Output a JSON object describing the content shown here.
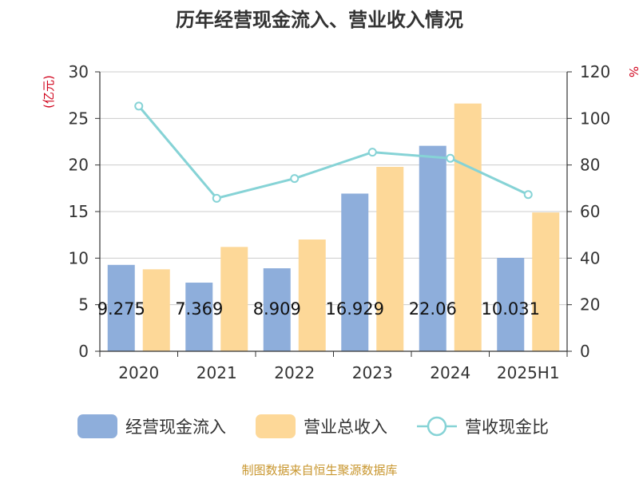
{
  "chart_data": {
    "type": "bar",
    "title": "历年经营现金流入、营业收入情况",
    "categories": [
      "2020",
      "2021",
      "2022",
      "2023",
      "2024",
      "2025H1"
    ],
    "y_left": {
      "unit": "(亿元)",
      "ylim": [
        0,
        30
      ],
      "ticks": [
        0,
        5,
        10,
        15,
        20,
        25,
        30
      ]
    },
    "y_right": {
      "unit": "%",
      "ylim": [
        0,
        120
      ],
      "ticks": [
        0,
        20,
        40,
        60,
        80,
        100,
        120
      ]
    },
    "series": [
      {
        "name": "经营现金流入",
        "type": "bar",
        "axis": "left",
        "color": "#8eaedb",
        "values": [
          9.275,
          7.369,
          8.909,
          16.929,
          22.06,
          10.031
        ],
        "labels": [
          "9.275",
          "7.369",
          "8.909",
          "16.929",
          "22.06",
          "10.031"
        ]
      },
      {
        "name": "营业总收入",
        "type": "bar",
        "axis": "left",
        "color": "#fdd898",
        "values": [
          8.8,
          11.2,
          12.0,
          19.8,
          26.6,
          14.9
        ]
      },
      {
        "name": "营收现金比",
        "type": "line",
        "axis": "right",
        "color": "#86d3d6",
        "values": [
          105.3,
          65.7,
          74.2,
          85.5,
          82.9,
          67.3
        ]
      }
    ],
    "grid": true,
    "legend_position": "bottom"
  },
  "source_text": "制图数据来自恒生聚源数据库",
  "colors": {
    "axis_unit": "#d0021b",
    "source": "#c8962e",
    "axis": "#333333",
    "grid": "#cccccc"
  }
}
